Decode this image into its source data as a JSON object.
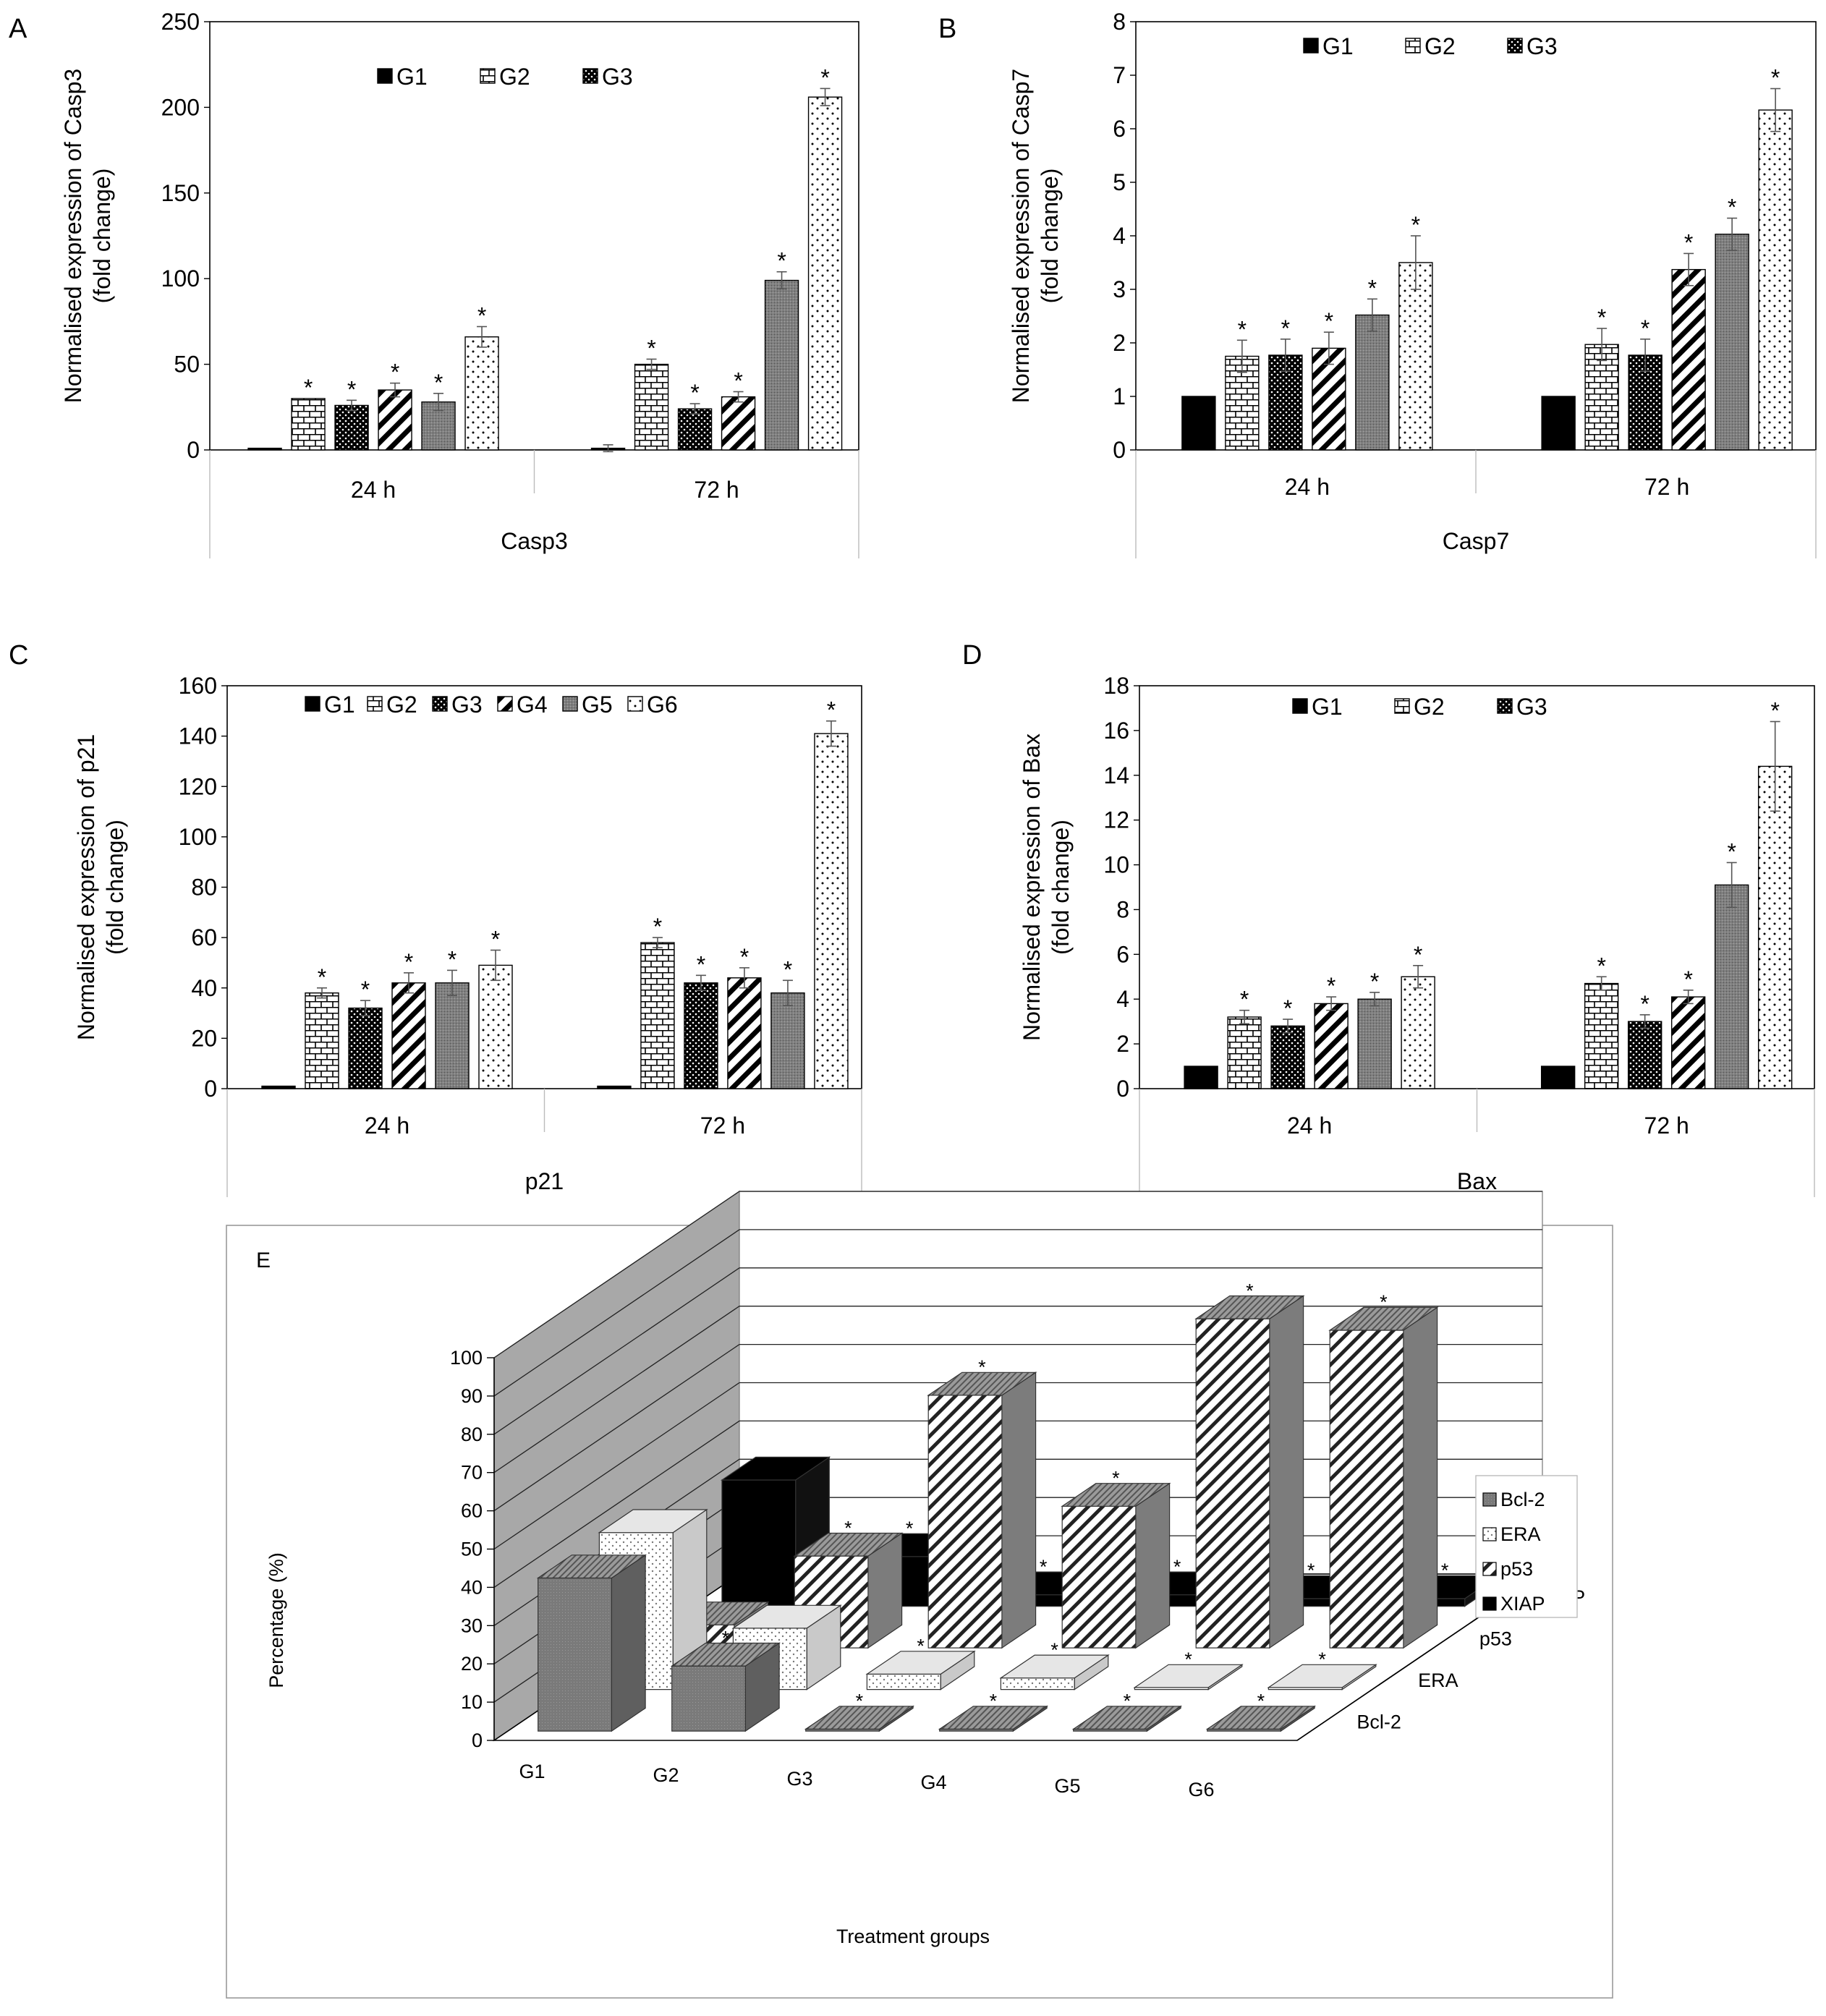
{
  "panels": [
    {
      "letter": "A",
      "chart_data": {
        "type": "bar",
        "ylabel_lines": [
          "Normalised expression of Casp3",
          "(fold change)"
        ],
        "xlabel": "Casp3",
        "categories": [
          "24 h",
          "72 h"
        ],
        "ylim": [
          0,
          250
        ],
        "yticks": [
          "0",
          "50",
          "100",
          "150",
          "200",
          "250"
        ],
        "legend": [
          "G1",
          "G2",
          "G3"
        ],
        "series": [
          {
            "key": "G1",
            "values": [
              1,
              1
            ],
            "errors": [
              0,
              2
            ],
            "sig": [
              false,
              false
            ],
            "fill": "black"
          },
          {
            "key": "G2",
            "values": [
              30,
              50
            ],
            "errors": [
              0,
              3
            ],
            "sig": [
              true,
              true
            ],
            "fill": "brick"
          },
          {
            "key": "G3",
            "values": [
              26,
              24
            ],
            "errors": [
              3,
              3
            ],
            "sig": [
              true,
              true
            ],
            "fill": "dots"
          },
          {
            "key": "G4",
            "values": [
              35,
              31
            ],
            "errors": [
              4,
              3
            ],
            "sig": [
              true,
              true
            ],
            "fill": "diag"
          },
          {
            "key": "G5",
            "values": [
              28,
              99
            ],
            "errors": [
              5,
              5
            ],
            "sig": [
              true,
              true
            ],
            "fill": "gray"
          },
          {
            "key": "G6",
            "values": [
              66,
              206
            ],
            "errors": [
              6,
              5
            ],
            "sig": [
              true,
              true
            ],
            "fill": "sparse"
          }
        ],
        "sig_symbol": "*"
      }
    },
    {
      "letter": "B",
      "chart_data": {
        "type": "bar",
        "ylabel_lines": [
          "Normalised expression of Casp7",
          "(fold change)"
        ],
        "xlabel": "Casp7",
        "categories": [
          "24 h",
          "72 h"
        ],
        "ylim": [
          0,
          8
        ],
        "yticks": [
          "0",
          "1",
          "2",
          "3",
          "4",
          "5",
          "6",
          "7",
          "8"
        ],
        "legend": [
          "G1",
          "G2",
          "G3"
        ],
        "series": [
          {
            "key": "G1",
            "values": [
              1,
              1
            ],
            "errors": [
              0,
              0
            ],
            "sig": [
              false,
              false
            ],
            "fill": "black"
          },
          {
            "key": "G2",
            "values": [
              1.75,
              1.97
            ],
            "errors": [
              0.3,
              0.3
            ],
            "sig": [
              true,
              true
            ],
            "fill": "brick"
          },
          {
            "key": "G3",
            "values": [
              1.77,
              1.77
            ],
            "errors": [
              0.3,
              0.3
            ],
            "sig": [
              true,
              true
            ],
            "fill": "dots"
          },
          {
            "key": "G4",
            "values": [
              1.9,
              3.37
            ],
            "errors": [
              0.3,
              0.3
            ],
            "sig": [
              true,
              true
            ],
            "fill": "diag"
          },
          {
            "key": "G5",
            "values": [
              2.52,
              4.03
            ],
            "errors": [
              0.3,
              0.3
            ],
            "sig": [
              true,
              true
            ],
            "fill": "gray"
          },
          {
            "key": "G6",
            "values": [
              3.5,
              6.35
            ],
            "errors": [
              0.5,
              0.4
            ],
            "sig": [
              true,
              true
            ],
            "fill": "sparse"
          }
        ],
        "sig_symbol": "*"
      }
    },
    {
      "letter": "C",
      "chart_data": {
        "type": "bar",
        "ylabel_lines": [
          "Normalised expression of p21",
          "(fold change)"
        ],
        "xlabel": "p21",
        "categories": [
          "24 h",
          "72 h"
        ],
        "ylim": [
          0,
          160
        ],
        "yticks": [
          "0",
          "20",
          "40",
          "60",
          "80",
          "100",
          "120",
          "140",
          "160"
        ],
        "legend": [
          "G1",
          "G2",
          "G3",
          "G4",
          "G5",
          "G6"
        ],
        "series": [
          {
            "key": "G1",
            "values": [
              1,
              1
            ],
            "errors": [
              0,
              0
            ],
            "sig": [
              false,
              false
            ],
            "fill": "black"
          },
          {
            "key": "G2",
            "values": [
              38,
              58
            ],
            "errors": [
              2,
              2
            ],
            "sig": [
              true,
              true
            ],
            "fill": "brick"
          },
          {
            "key": "G3",
            "values": [
              32,
              42
            ],
            "errors": [
              3,
              3
            ],
            "sig": [
              true,
              true
            ],
            "fill": "dots"
          },
          {
            "key": "G4",
            "values": [
              42,
              44
            ],
            "errors": [
              4,
              4
            ],
            "sig": [
              true,
              true
            ],
            "fill": "diag"
          },
          {
            "key": "G5",
            "values": [
              42,
              38
            ],
            "errors": [
              5,
              5
            ],
            "sig": [
              true,
              true
            ],
            "fill": "gray"
          },
          {
            "key": "G6",
            "values": [
              49,
              141
            ],
            "errors": [
              6,
              5
            ],
            "sig": [
              true,
              true
            ],
            "fill": "sparse"
          }
        ],
        "sig_symbol": "*"
      }
    },
    {
      "letter": "D",
      "chart_data": {
        "type": "bar",
        "ylabel_lines": [
          "Normalised expression of Bax",
          "(fold change)"
        ],
        "xlabel": "Bax",
        "categories": [
          "24 h",
          "72 h"
        ],
        "ylim": [
          0,
          18
        ],
        "yticks": [
          "0",
          "2",
          "4",
          "6",
          "8",
          "10",
          "12",
          "14",
          "16",
          "18"
        ],
        "legend": [
          "G1",
          "G2",
          "G3"
        ],
        "series": [
          {
            "key": "G1",
            "values": [
              1,
              1
            ],
            "errors": [
              0,
              0
            ],
            "sig": [
              false,
              false
            ],
            "fill": "black"
          },
          {
            "key": "G2",
            "values": [
              3.2,
              4.7
            ],
            "errors": [
              0.3,
              0.3
            ],
            "sig": [
              true,
              true
            ],
            "fill": "brick"
          },
          {
            "key": "G3",
            "values": [
              2.8,
              3.0
            ],
            "errors": [
              0.3,
              0.3
            ],
            "sig": [
              true,
              true
            ],
            "fill": "dots"
          },
          {
            "key": "G4",
            "values": [
              3.8,
              4.1
            ],
            "errors": [
              0.3,
              0.3
            ],
            "sig": [
              true,
              true
            ],
            "fill": "diag"
          },
          {
            "key": "G5",
            "values": [
              4.0,
              9.1
            ],
            "errors": [
              0.3,
              1.0
            ],
            "sig": [
              true,
              true
            ],
            "fill": "gray"
          },
          {
            "key": "G6",
            "values": [
              5.0,
              14.4
            ],
            "errors": [
              0.5,
              2.0
            ],
            "sig": [
              true,
              true
            ],
            "fill": "sparse"
          }
        ],
        "sig_symbol": "*"
      }
    }
  ],
  "panelE": {
    "letter": "E",
    "chart_data": {
      "type": "bar",
      "ylabel": "Percentage (%)",
      "xlabel": "Treatment groups",
      "categories": [
        "G1",
        "G2",
        "G3",
        "G4",
        "G5",
        "G6"
      ],
      "depth_labels": [
        "Bcl-2",
        "ERA",
        "p53",
        "XIAP"
      ],
      "ylim": [
        0,
        100
      ],
      "yticks": [
        "0",
        "10",
        "20",
        "30",
        "40",
        "50",
        "60",
        "70",
        "80",
        "90",
        "100"
      ],
      "legend": [
        "Bcl-2",
        "ERA",
        "p53",
        "XIAP"
      ],
      "sig_symbol": "*",
      "series": [
        {
          "name": "Bcl-2",
          "fill": "e-gray",
          "values": [
            40,
            17,
            0.5,
            0.5,
            0.5,
            0.5
          ],
          "sig": [
            false,
            true,
            true,
            true,
            true,
            true
          ]
        },
        {
          "name": "ERA",
          "fill": "e-dots",
          "values": [
            41,
            16,
            4,
            3,
            0.5,
            0.5
          ],
          "sig": [
            false,
            true,
            true,
            true,
            true,
            true
          ]
        },
        {
          "name": "p53",
          "fill": "e-diag",
          "values": [
            6,
            24,
            66,
            37,
            86,
            83
          ],
          "sig": [
            false,
            true,
            true,
            true,
            true,
            true
          ]
        },
        {
          "name": "XIAP",
          "fill": "e-black",
          "values": [
            33,
            13,
            3,
            3,
            2,
            2
          ],
          "sig": [
            false,
            true,
            true,
            true,
            true,
            true
          ]
        }
      ]
    }
  }
}
